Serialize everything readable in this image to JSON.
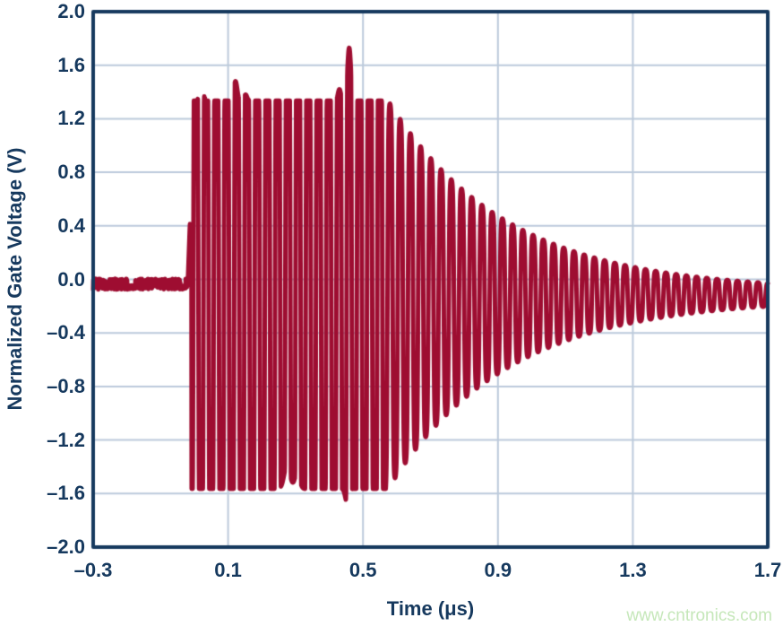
{
  "page": {
    "background": "#ffffff"
  },
  "watermark": {
    "text": "www.cntronics.com",
    "color": "#c5e7b9"
  },
  "colors": {
    "line": "#9e0d31",
    "axis": "#16395e",
    "grid": "#bccadb",
    "text": "#16395e"
  },
  "chart_data": {
    "type": "line",
    "title": "",
    "xlabel": "Time (μs)",
    "ylabel": "Normalized Gate Voltage (V)",
    "xlim": [
      -0.3,
      1.7
    ],
    "ylim": [
      -2.0,
      2.0
    ],
    "grid": true,
    "legend": "none",
    "x_ticks": [
      -0.3,
      0.1,
      0.5,
      0.9,
      1.3,
      1.7
    ],
    "x_tick_labels": [
      "–0.3",
      "0.1",
      "0.5",
      "0.9",
      "1.3",
      "1.7"
    ],
    "y_ticks": [
      2.0,
      1.6,
      1.2,
      0.8,
      0.4,
      0.0,
      -0.4,
      -0.8,
      -1.2,
      -1.6,
      -2.0
    ],
    "y_tick_labels": [
      "2.0",
      "1.6",
      "1.2",
      "0.8",
      "0.4",
      "0.0",
      "–0.4",
      "–0.8",
      "–1.2",
      "–1.6",
      "–2.0"
    ],
    "series_name": "normalized-gate-voltage",
    "signal": {
      "description": "Flat noise floor until t≈0, hard-clipped ~33 cycles/μs oscillation burst from 0 to ~0.56 μs, then exponential ring-down to a small residual ripple",
      "center": -0.115,
      "carrier_cycles_per_us": 33,
      "phase_peak_at": 0.459,
      "baseline": {
        "t_range": [
          -0.3,
          -0.016
        ],
        "band_top": 0.005,
        "band_bottom": -0.075,
        "notch_top": -0.045,
        "notches": [
          {
            "t": -0.187,
            "width": 0.022
          },
          {
            "t": -0.034,
            "width": 0.016
          }
        ]
      },
      "pre_spike": {
        "t": -0.013,
        "v": 0.42,
        "width": 0.006
      },
      "burst_start": -0.008,
      "clip_top": 1.335,
      "clip_bottom": -1.565,
      "drive_amplitude": 2.3,
      "squareness": 2.0,
      "decay": {
        "t_start": 0.56,
        "a0": 1.48,
        "tau_us": 0.35,
        "floor": 0.03
      },
      "anomalies": [
        {
          "t": 0.021,
          "v": 1.47,
          "width": 0.007
        },
        {
          "t": 0.122,
          "v": 1.48,
          "width": 0.007
        },
        {
          "t": 0.152,
          "v": 1.38,
          "width": 0.006
        },
        {
          "t": 0.275,
          "v": -1.38,
          "width": 0.012
        },
        {
          "t": 0.305,
          "v": -1.44,
          "width": 0.01
        },
        {
          "t": 0.43,
          "v": 1.42,
          "width": 0.006
        },
        {
          "t": 0.452,
          "v": -1.66,
          "width": 0.007
        },
        {
          "t": 0.459,
          "v": 1.73,
          "width": 0.007
        }
      ],
      "envelope_positive_peaks": [
        [
          0.574,
          1.35
        ],
        [
          0.614,
          1.3
        ],
        [
          0.645,
          1.24
        ],
        [
          0.672,
          1.13
        ],
        [
          0.699,
          1.03
        ],
        [
          0.73,
          0.93
        ],
        [
          0.757,
          0.82
        ],
        [
          0.787,
          0.7
        ],
        [
          0.818,
          0.65
        ],
        [
          0.847,
          0.61
        ],
        [
          0.876,
          0.51
        ],
        [
          0.903,
          0.45
        ],
        [
          0.932,
          0.39
        ],
        [
          0.961,
          0.33
        ],
        [
          0.991,
          0.31
        ],
        [
          1.02,
          0.28
        ],
        [
          1.049,
          0.24
        ],
        [
          1.078,
          0.19
        ],
        [
          1.105,
          0.18
        ],
        [
          1.132,
          0.12
        ],
        [
          1.3,
          0.05
        ],
        [
          1.5,
          0.0
        ],
        [
          1.7,
          -0.03
        ]
      ]
    }
  }
}
